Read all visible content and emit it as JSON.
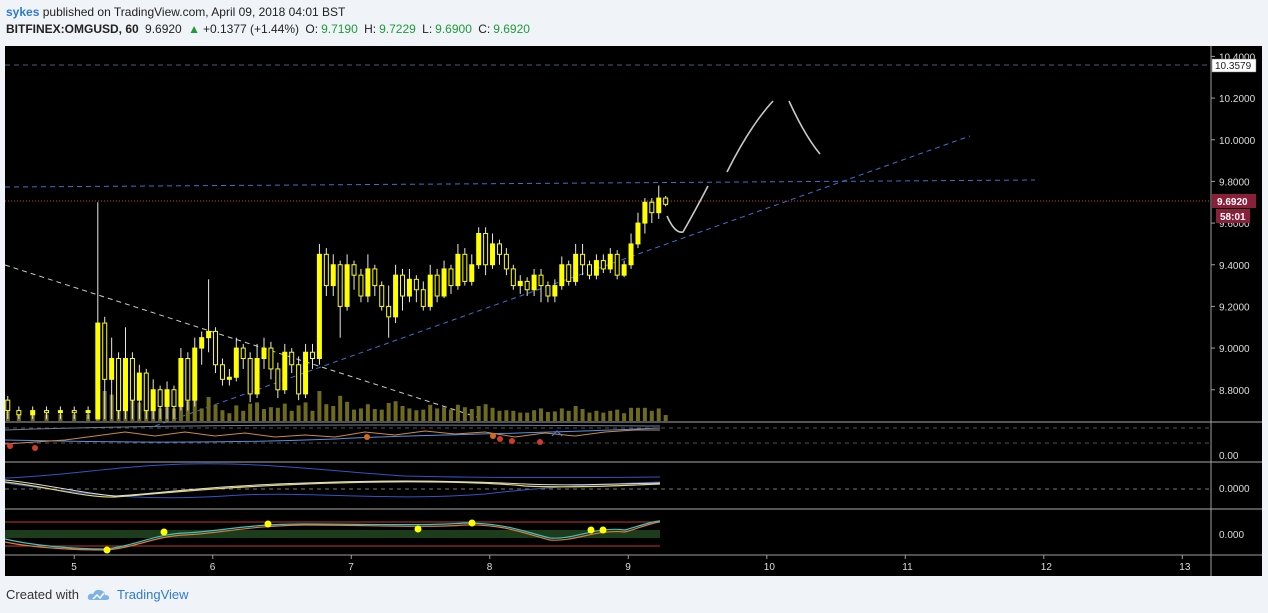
{
  "header": {
    "user": "sykes",
    "published": "published on TradingView.com, April 09, 2018 04:01 BST",
    "symbol": "BITFINEX:OMGUSD, 60",
    "last": "9.6920",
    "change": "+0.1377 (+1.44%)",
    "open_label": "O:",
    "open": "9.7190",
    "high_label": "H:",
    "high": "9.7229",
    "low_label": "L:",
    "low": "9.6900",
    "close_label": "C:",
    "close": "9.6920"
  },
  "footer": {
    "created_with": "Created with",
    "brand": "TradingView"
  },
  "colors": {
    "candle_up": "#ffff00",
    "background": "#000000",
    "trendline": "#3d6fd6",
    "price_tag": "#8a1f3a"
  },
  "chart_data": {
    "type": "candlestick",
    "x_ticks": [
      "5",
      "6",
      "7",
      "8",
      "9",
      "10",
      "11",
      "12",
      "13"
    ],
    "x_domain": [
      4.5,
      13.2
    ],
    "y_ticks": [
      "8.8000",
      "9.0000",
      "9.2000",
      "9.4000",
      "9.6000",
      "9.8000",
      "10.0000",
      "10.2000",
      "10.4000"
    ],
    "ylim": [
      8.65,
      10.45
    ],
    "price_tag": "9.6920",
    "countdown_tag": "58:01",
    "level_tag": "10.3579",
    "level_value": 10.3579,
    "sub_panels": [
      {
        "ticks": [
          "0.00"
        ]
      },
      {
        "ticks": [
          "0.0000"
        ]
      },
      {
        "ticks": [
          "0.000"
        ]
      }
    ],
    "candles": [
      [
        4.52,
        8.75,
        8.7,
        8.77,
        8.66
      ],
      [
        4.6,
        8.7,
        8.68,
        8.72,
        8.66
      ],
      [
        4.7,
        8.68,
        8.7,
        8.72,
        8.66
      ],
      [
        4.8,
        8.7,
        8.69,
        8.72,
        8.66
      ],
      [
        4.9,
        8.69,
        8.7,
        8.72,
        8.66
      ],
      [
        5.0,
        8.7,
        8.69,
        8.72,
        8.66
      ],
      [
        5.1,
        8.69,
        8.7,
        8.72,
        8.66
      ],
      [
        5.17,
        8.66,
        9.12,
        9.7,
        8.66
      ],
      [
        5.22,
        9.12,
        8.85,
        9.15,
        8.66
      ],
      [
        5.27,
        8.85,
        8.95,
        9.05,
        8.66
      ],
      [
        5.32,
        8.95,
        8.7,
        8.98,
        8.66
      ],
      [
        5.37,
        8.7,
        8.95,
        9.1,
        8.66
      ],
      [
        5.42,
        8.95,
        8.75,
        8.98,
        8.66
      ],
      [
        5.47,
        8.75,
        8.88,
        8.92,
        8.66
      ],
      [
        5.52,
        8.88,
        8.7,
        8.9,
        8.66
      ],
      [
        5.57,
        8.7,
        8.8,
        8.85,
        8.66
      ],
      [
        5.62,
        8.8,
        8.72,
        8.82,
        8.66
      ],
      [
        5.67,
        8.72,
        8.8,
        8.84,
        8.66
      ],
      [
        5.72,
        8.8,
        8.72,
        8.82,
        8.66
      ],
      [
        5.77,
        8.72,
        8.95,
        9.0,
        8.7
      ],
      [
        5.82,
        8.95,
        8.75,
        8.98,
        8.7
      ],
      [
        5.87,
        8.75,
        9.0,
        9.05,
        8.72
      ],
      [
        5.92,
        9.0,
        9.05,
        9.08,
        8.92
      ],
      [
        5.97,
        9.05,
        9.08,
        9.33,
        8.98
      ],
      [
        6.02,
        9.08,
        8.92,
        9.1,
        8.88
      ],
      [
        6.07,
        8.92,
        8.85,
        8.95,
        8.82
      ],
      [
        6.12,
        8.85,
        8.86,
        8.9,
        8.82
      ],
      [
        6.17,
        8.86,
        9.0,
        9.05,
        8.84
      ],
      [
        6.22,
        9.0,
        8.95,
        9.02,
        8.9
      ],
      [
        6.27,
        8.95,
        8.78,
        8.98,
        8.74
      ],
      [
        6.32,
        8.78,
        8.95,
        9.02,
        8.76
      ],
      [
        6.37,
        8.95,
        9.0,
        9.05,
        8.9
      ],
      [
        6.42,
        9.0,
        8.9,
        9.03,
        8.85
      ],
      [
        6.47,
        8.9,
        8.8,
        8.93,
        8.76
      ],
      [
        6.52,
        8.8,
        8.98,
        9.02,
        8.78
      ],
      [
        6.57,
        8.98,
        8.92,
        9.0,
        8.88
      ],
      [
        6.62,
        8.92,
        8.78,
        8.96,
        8.75
      ],
      [
        6.67,
        8.78,
        8.98,
        9.02,
        8.76
      ],
      [
        6.72,
        8.98,
        8.95,
        9.02,
        8.9
      ],
      [
        6.77,
        8.95,
        9.45,
        9.5,
        8.92
      ],
      [
        6.82,
        9.45,
        9.3,
        9.48,
        9.25
      ],
      [
        6.87,
        9.3,
        9.4,
        9.45,
        9.25
      ],
      [
        6.92,
        9.4,
        9.2,
        9.42,
        9.05
      ],
      [
        6.97,
        9.2,
        9.4,
        9.45,
        9.18
      ],
      [
        7.02,
        9.4,
        9.35,
        9.42,
        9.28
      ],
      [
        7.07,
        9.35,
        9.25,
        9.38,
        9.22
      ],
      [
        7.12,
        9.25,
        9.38,
        9.45,
        9.22
      ],
      [
        7.17,
        9.38,
        9.3,
        9.4,
        9.25
      ],
      [
        7.22,
        9.3,
        9.2,
        9.32,
        9.18
      ],
      [
        7.27,
        9.2,
        9.15,
        9.3,
        9.05
      ],
      [
        7.32,
        9.15,
        9.35,
        9.4,
        9.12
      ],
      [
        7.37,
        9.35,
        9.25,
        9.38,
        9.18
      ],
      [
        7.42,
        9.25,
        9.33,
        9.38,
        9.22
      ],
      [
        7.47,
        9.33,
        9.28,
        9.35,
        9.22
      ],
      [
        7.52,
        9.28,
        9.2,
        9.32,
        9.18
      ],
      [
        7.57,
        9.2,
        9.35,
        9.4,
        9.18
      ],
      [
        7.62,
        9.35,
        9.25,
        9.38,
        9.22
      ],
      [
        7.67,
        9.25,
        9.38,
        9.42,
        9.24
      ],
      [
        7.72,
        9.38,
        9.3,
        9.4,
        9.26
      ],
      [
        7.77,
        9.3,
        9.45,
        9.5,
        9.28
      ],
      [
        7.82,
        9.45,
        9.32,
        9.48,
        9.3
      ],
      [
        7.87,
        9.32,
        9.4,
        9.45,
        9.3
      ],
      [
        7.92,
        9.4,
        9.55,
        9.58,
        9.38
      ],
      [
        7.97,
        9.55,
        9.4,
        9.58,
        9.35
      ],
      [
        8.02,
        9.4,
        9.5,
        9.55,
        9.38
      ],
      [
        8.07,
        9.5,
        9.45,
        9.52,
        9.4
      ],
      [
        8.12,
        9.45,
        9.38,
        9.48,
        9.35
      ],
      [
        8.17,
        9.38,
        9.3,
        9.4,
        9.28
      ],
      [
        8.22,
        9.3,
        9.32,
        9.35,
        9.26
      ],
      [
        8.27,
        9.32,
        9.28,
        9.34,
        9.25
      ],
      [
        8.32,
        9.28,
        9.35,
        9.38,
        9.25
      ],
      [
        8.37,
        9.35,
        9.3,
        9.38,
        9.22
      ],
      [
        8.42,
        9.3,
        9.25,
        9.32,
        9.22
      ],
      [
        8.47,
        9.25,
        9.3,
        9.33,
        9.22
      ],
      [
        8.52,
        9.3,
        9.4,
        9.44,
        9.28
      ],
      [
        8.57,
        9.4,
        9.32,
        9.42,
        9.3
      ],
      [
        8.62,
        9.32,
        9.45,
        9.5,
        9.3
      ],
      [
        8.67,
        9.45,
        9.4,
        9.5,
        9.35
      ],
      [
        8.72,
        9.4,
        9.35,
        9.42,
        9.33
      ],
      [
        8.77,
        9.35,
        9.42,
        9.45,
        9.33
      ],
      [
        8.82,
        9.42,
        9.38,
        9.45,
        9.36
      ],
      [
        8.87,
        9.38,
        9.45,
        9.48,
        9.36
      ],
      [
        8.92,
        9.45,
        9.35,
        9.47,
        9.33
      ],
      [
        8.97,
        9.35,
        9.4,
        9.42,
        9.34
      ],
      [
        9.02,
        9.4,
        9.5,
        9.55,
        9.38
      ],
      [
        9.07,
        9.5,
        9.6,
        9.65,
        9.48
      ],
      [
        9.12,
        9.6,
        9.7,
        9.72,
        9.55
      ],
      [
        9.17,
        9.7,
        9.65,
        9.72,
        9.6
      ],
      [
        9.22,
        9.65,
        9.72,
        9.78,
        9.62
      ],
      [
        9.27,
        9.72,
        9.69,
        9.73,
        9.68
      ]
    ]
  }
}
